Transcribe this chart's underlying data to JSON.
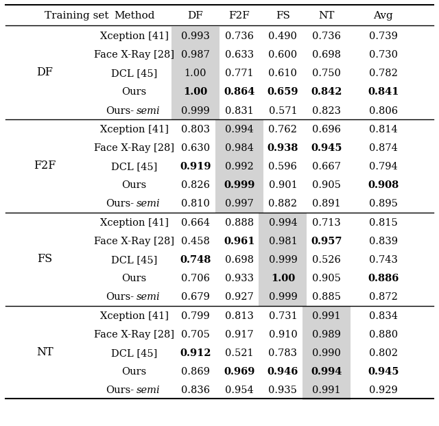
{
  "headers": [
    "Training set",
    "Method",
    "DF",
    "F2F",
    "FS",
    "NT",
    "Avg"
  ],
  "sections": [
    {
      "group_label": "DF",
      "rows": [
        {
          "method": "Xception [41]",
          "values": [
            "0.993",
            "0.736",
            "0.490",
            "0.736",
            "0.739"
          ],
          "bold": [
            false,
            false,
            false,
            false,
            false
          ]
        },
        {
          "method": "Face X-Ray [28]",
          "values": [
            "0.987",
            "0.633",
            "0.600",
            "0.698",
            "0.730"
          ],
          "bold": [
            false,
            false,
            false,
            false,
            false
          ]
        },
        {
          "method": "DCL [45]",
          "values": [
            "1.00",
            "0.771",
            "0.610",
            "0.750",
            "0.782"
          ],
          "bold": [
            false,
            false,
            false,
            false,
            false
          ]
        },
        {
          "method": "Ours",
          "values": [
            "1.00",
            "0.864",
            "0.659",
            "0.842",
            "0.841"
          ],
          "bold": [
            true,
            true,
            true,
            true,
            true
          ]
        },
        {
          "method": "Ours-semi",
          "values": [
            "0.999",
            "0.831",
            "0.571",
            "0.823",
            "0.806"
          ],
          "bold": [
            false,
            false,
            false,
            false,
            false
          ]
        }
      ],
      "highlight_col": 0
    },
    {
      "group_label": "F2F",
      "rows": [
        {
          "method": "Xception [41]",
          "values": [
            "0.803",
            "0.994",
            "0.762",
            "0.696",
            "0.814"
          ],
          "bold": [
            false,
            false,
            false,
            false,
            false
          ]
        },
        {
          "method": "Face X-Ray [28]",
          "values": [
            "0.630",
            "0.984",
            "0.938",
            "0.945",
            "0.874"
          ],
          "bold": [
            false,
            false,
            true,
            true,
            false
          ]
        },
        {
          "method": "DCL [45]",
          "values": [
            "0.919",
            "0.992",
            "0.596",
            "0.667",
            "0.794"
          ],
          "bold": [
            true,
            false,
            false,
            false,
            false
          ]
        },
        {
          "method": "Ours",
          "values": [
            "0.826",
            "0.999",
            "0.901",
            "0.905",
            "0.908"
          ],
          "bold": [
            false,
            true,
            false,
            false,
            true
          ]
        },
        {
          "method": "Ours-semi",
          "values": [
            "0.810",
            "0.997",
            "0.882",
            "0.891",
            "0.895"
          ],
          "bold": [
            false,
            false,
            false,
            false,
            false
          ]
        }
      ],
      "highlight_col": 1
    },
    {
      "group_label": "FS",
      "rows": [
        {
          "method": "Xception [41]",
          "values": [
            "0.664",
            "0.888",
            "0.994",
            "0.713",
            "0.815"
          ],
          "bold": [
            false,
            false,
            false,
            false,
            false
          ]
        },
        {
          "method": "Face X-Ray [28]",
          "values": [
            "0.458",
            "0.961",
            "0.981",
            "0.957",
            "0.839"
          ],
          "bold": [
            false,
            true,
            false,
            true,
            false
          ]
        },
        {
          "method": "DCL [45]",
          "values": [
            "0.748",
            "0.698",
            "0.999",
            "0.526",
            "0.743"
          ],
          "bold": [
            true,
            false,
            false,
            false,
            false
          ]
        },
        {
          "method": "Ours",
          "values": [
            "0.706",
            "0.933",
            "1.00",
            "0.905",
            "0.886"
          ],
          "bold": [
            false,
            false,
            true,
            false,
            true
          ]
        },
        {
          "method": "Ours-semi",
          "values": [
            "0.679",
            "0.927",
            "0.999",
            "0.885",
            "0.872"
          ],
          "bold": [
            false,
            false,
            false,
            false,
            false
          ]
        }
      ],
      "highlight_col": 2
    },
    {
      "group_label": "NT",
      "rows": [
        {
          "method": "Xception [41]",
          "values": [
            "0.799",
            "0.813",
            "0.731",
            "0.991",
            "0.834"
          ],
          "bold": [
            false,
            false,
            false,
            false,
            false
          ]
        },
        {
          "method": "Face X-Ray [28]",
          "values": [
            "0.705",
            "0.917",
            "0.910",
            "0.989",
            "0.880"
          ],
          "bold": [
            false,
            false,
            false,
            false,
            false
          ]
        },
        {
          "method": "DCL [45]",
          "values": [
            "0.912",
            "0.521",
            "0.783",
            "0.990",
            "0.802"
          ],
          "bold": [
            true,
            false,
            false,
            false,
            false
          ]
        },
        {
          "method": "Ours",
          "values": [
            "0.869",
            "0.969",
            "0.946",
            "0.994",
            "0.945"
          ],
          "bold": [
            false,
            true,
            true,
            true,
            true
          ]
        },
        {
          "method": "Ours-semi",
          "values": [
            "0.836",
            "0.954",
            "0.935",
            "0.991",
            "0.929"
          ],
          "bold": [
            false,
            false,
            false,
            false,
            false
          ]
        }
      ],
      "highlight_col": 3
    }
  ],
  "highlight_color": "#d3d3d3",
  "bg_color": "#ffffff",
  "text_color": "#000000",
  "font_size": 10.5,
  "header_font_size": 11.0
}
